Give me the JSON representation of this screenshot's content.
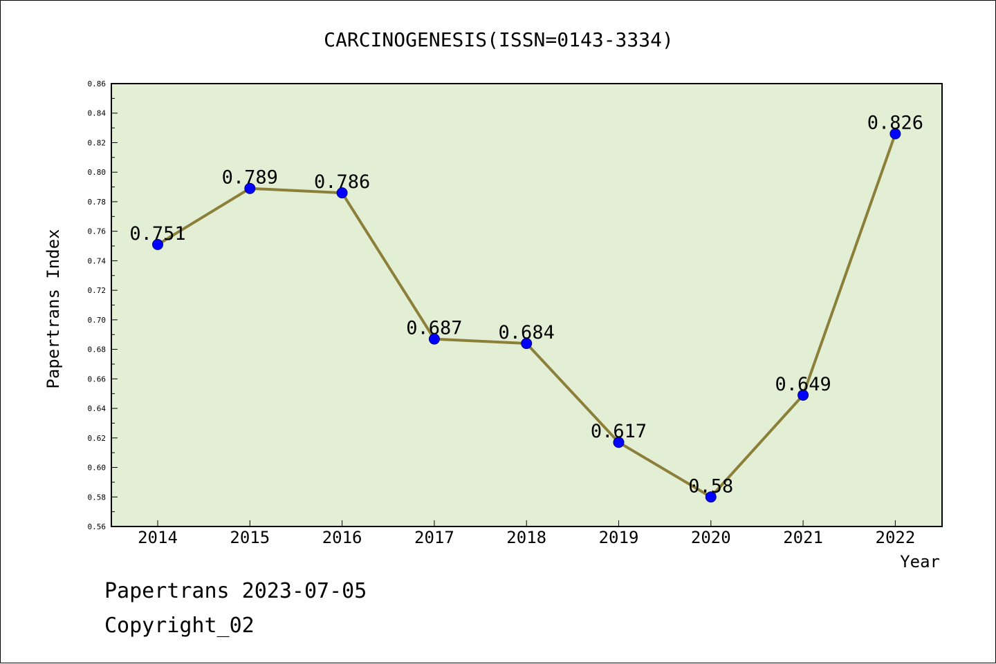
{
  "chart_data": {
    "type": "line",
    "title": "CARCINOGENESIS(ISSN=0143-3334)",
    "xlabel": "Year",
    "ylabel": "Papertrans Index",
    "categories": [
      "2014",
      "2015",
      "2016",
      "2017",
      "2018",
      "2019",
      "2020",
      "2021",
      "2022"
    ],
    "values": [
      0.751,
      0.789,
      0.786,
      0.687,
      0.684,
      0.617,
      0.58,
      0.649,
      0.826
    ],
    "data_labels": [
      "0.751",
      "0.789",
      "0.786",
      "0.687",
      "0.684",
      "0.617",
      "0.58",
      "0.649",
      "0.826"
    ],
    "ylim": [
      0.56,
      0.86
    ],
    "yticks": [
      "0.56",
      "0.58",
      "0.60",
      "0.62",
      "0.64",
      "0.66",
      "0.68",
      "0.70",
      "0.72",
      "0.74",
      "0.76",
      "0.78",
      "0.80",
      "0.82",
      "0.84",
      "0.86"
    ],
    "grid": false,
    "legend": "none",
    "colors": {
      "plot_background": "#e2efd4",
      "line": "#8b7f3a",
      "marker": "#0000ff"
    }
  },
  "footer": {
    "line1": "Papertrans 2023-07-05",
    "line2": "Copyright_02"
  }
}
